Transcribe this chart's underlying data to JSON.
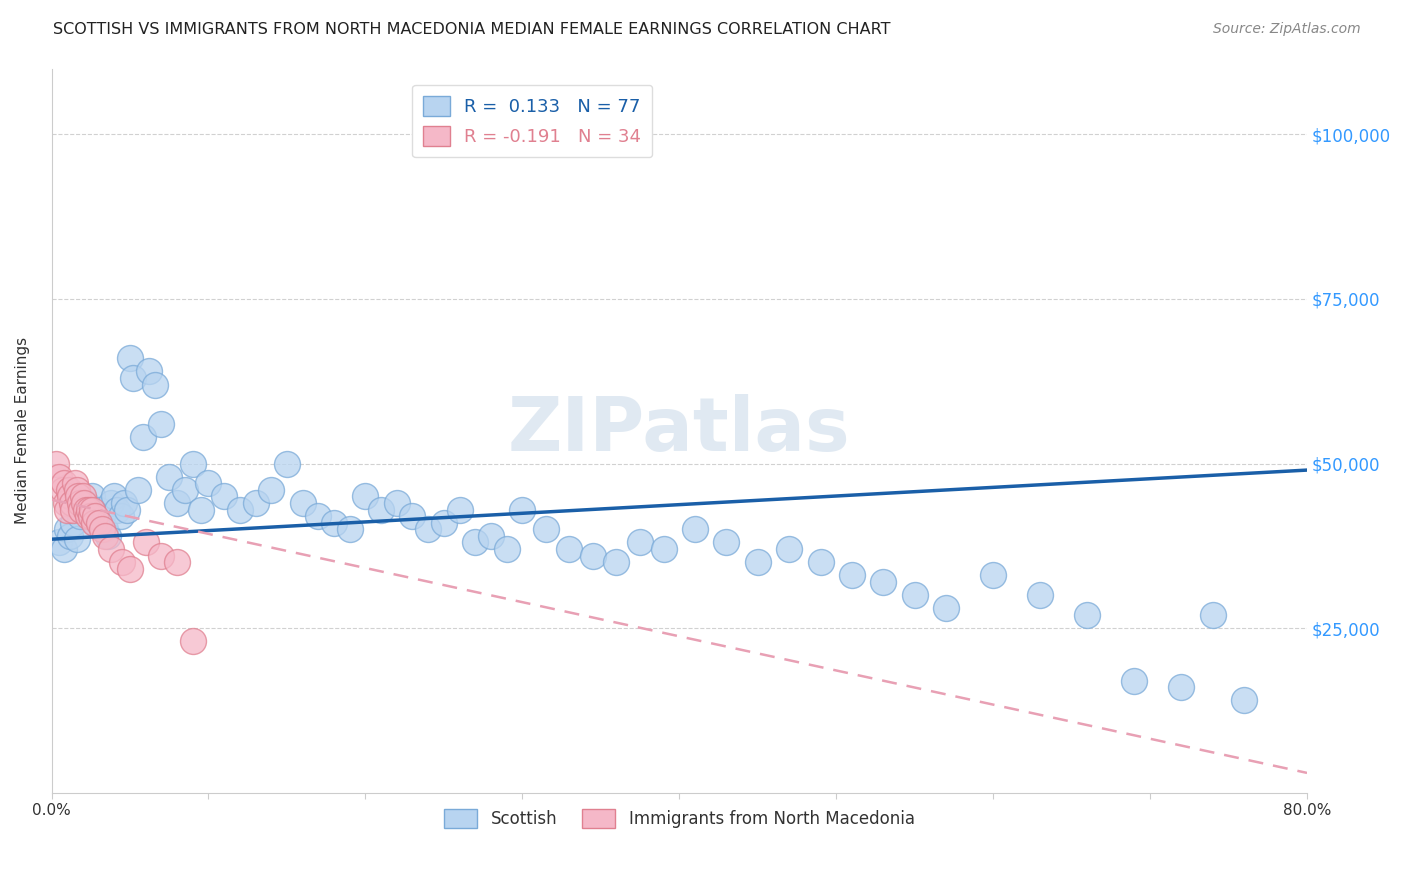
{
  "title": "SCOTTISH VS IMMIGRANTS FROM NORTH MACEDONIA MEDIAN FEMALE EARNINGS CORRELATION CHART",
  "source": "Source: ZipAtlas.com",
  "ylabel": "Median Female Earnings",
  "watermark": "ZIPatlas",
  "legend_labels": [
    "Scottish",
    "Immigrants from North Macedonia"
  ],
  "r_scottish": 0.133,
  "n_scottish": 77,
  "r_macedonian": -0.191,
  "n_macedonian": 34,
  "scottish_color": "#b8d4f0",
  "scottish_edge": "#7aaad8",
  "macedonian_color": "#f5b8c8",
  "macedonian_edge": "#e08090",
  "trend_blue": "#1a5fa8",
  "trend_pink": "#e8a0b4",
  "xmin": 0.0,
  "xmax": 0.8,
  "ymin": 0,
  "ymax": 110000,
  "yticks": [
    25000,
    50000,
    75000,
    100000
  ],
  "ytick_labels": [
    "$25,000",
    "$50,000",
    "$75,000",
    "$100,000"
  ],
  "xticks": [
    0.0,
    0.1,
    0.2,
    0.3,
    0.4,
    0.5,
    0.6,
    0.7,
    0.8
  ],
  "xtick_labels": [
    "0.0%",
    "",
    "",
    "",
    "",
    "",
    "",
    "",
    "80.0%"
  ],
  "scottish_x": [
    0.005,
    0.008,
    0.01,
    0.012,
    0.014,
    0.016,
    0.018,
    0.02,
    0.022,
    0.024,
    0.026,
    0.028,
    0.03,
    0.032,
    0.034,
    0.036,
    0.038,
    0.04,
    0.042,
    0.044,
    0.046,
    0.048,
    0.05,
    0.052,
    0.055,
    0.058,
    0.062,
    0.066,
    0.07,
    0.075,
    0.08,
    0.085,
    0.09,
    0.095,
    0.1,
    0.11,
    0.12,
    0.13,
    0.14,
    0.15,
    0.16,
    0.17,
    0.18,
    0.19,
    0.2,
    0.21,
    0.22,
    0.23,
    0.24,
    0.25,
    0.26,
    0.27,
    0.28,
    0.29,
    0.3,
    0.315,
    0.33,
    0.345,
    0.36,
    0.375,
    0.39,
    0.41,
    0.43,
    0.45,
    0.47,
    0.49,
    0.51,
    0.53,
    0.55,
    0.57,
    0.6,
    0.63,
    0.66,
    0.69,
    0.72,
    0.74,
    0.76
  ],
  "scottish_y": [
    38000,
    37000,
    40000,
    39000,
    41000,
    38500,
    42000,
    43000,
    44000,
    42500,
    45000,
    41000,
    43000,
    42000,
    40000,
    39000,
    44000,
    45000,
    43000,
    42000,
    44000,
    43000,
    66000,
    63000,
    46000,
    54000,
    64000,
    62000,
    56000,
    48000,
    44000,
    46000,
    50000,
    43000,
    47000,
    45000,
    43000,
    44000,
    46000,
    50000,
    44000,
    42000,
    41000,
    40000,
    45000,
    43000,
    44000,
    42000,
    40000,
    41000,
    43000,
    38000,
    39000,
    37000,
    43000,
    40000,
    37000,
    36000,
    35000,
    38000,
    37000,
    40000,
    38000,
    35000,
    37000,
    35000,
    33000,
    32000,
    30000,
    28000,
    33000,
    30000,
    27000,
    17000,
    16000,
    27000,
    14000
  ],
  "macedonian_x": [
    0.003,
    0.005,
    0.007,
    0.008,
    0.009,
    0.01,
    0.011,
    0.012,
    0.013,
    0.014,
    0.015,
    0.016,
    0.017,
    0.018,
    0.019,
    0.02,
    0.021,
    0.022,
    0.023,
    0.024,
    0.025,
    0.026,
    0.027,
    0.028,
    0.03,
    0.032,
    0.034,
    0.038,
    0.045,
    0.05,
    0.06,
    0.07,
    0.08,
    0.09
  ],
  "macedonian_y": [
    50000,
    48000,
    46000,
    47000,
    44000,
    43000,
    46000,
    45000,
    44000,
    43000,
    47000,
    46000,
    45000,
    44000,
    43000,
    45000,
    44000,
    43000,
    42000,
    43000,
    42000,
    43000,
    41000,
    42000,
    41000,
    40000,
    39000,
    37000,
    35000,
    34000,
    38000,
    36000,
    35000,
    23000
  ],
  "blue_trend_x0": 0.0,
  "blue_trend_y0": 38500,
  "blue_trend_x1": 0.8,
  "blue_trend_y1": 49000,
  "pink_trend_x0": 0.0,
  "pink_trend_y0": 44500,
  "pink_trend_x1": 0.8,
  "pink_trend_y1": 3000,
  "background_color": "#ffffff",
  "grid_color": "#cccccc",
  "title_color": "#222222",
  "axis_color": "#333333",
  "right_tick_color": "#3399ff"
}
